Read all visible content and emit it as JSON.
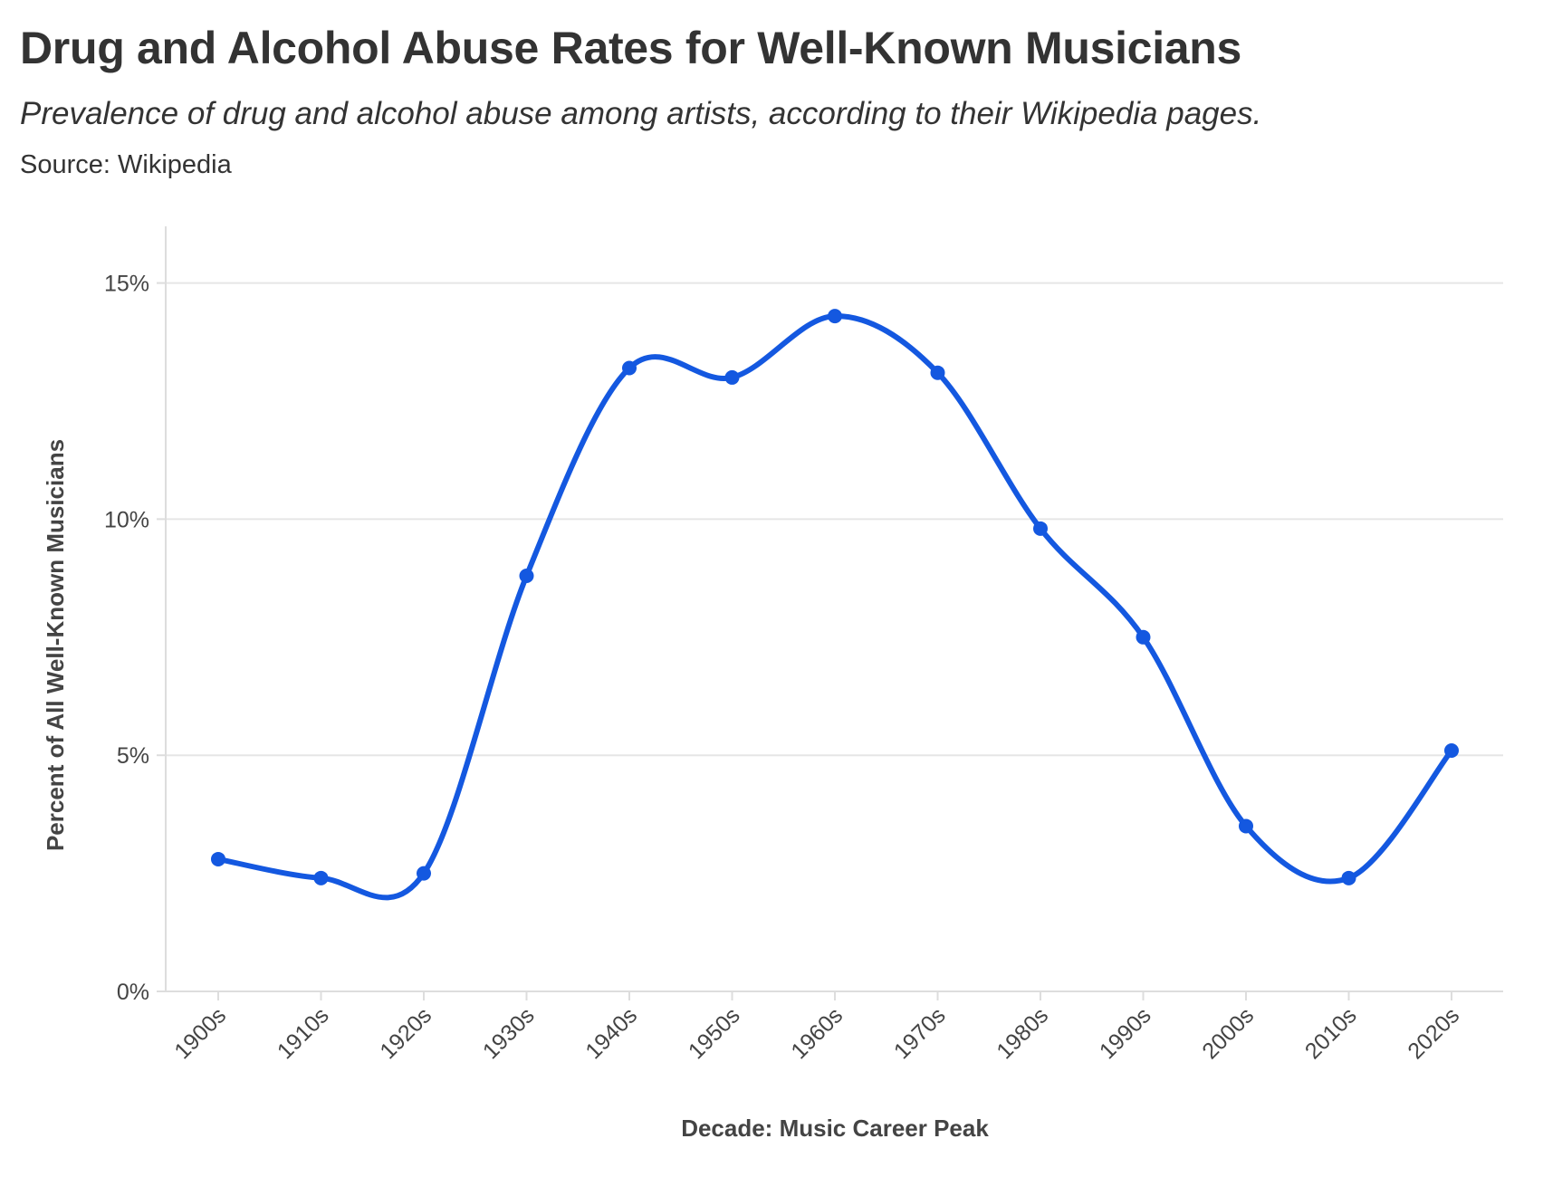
{
  "title": "Drug and Alcohol Abuse Rates for Well-Known Musicians",
  "subtitle": "Prevalence of drug and alcohol abuse among artists, according to their Wikipedia pages.",
  "source": "Source: Wikipedia",
  "colors": {
    "line": "#1458e0",
    "grid": "#e6e6e6",
    "axis": "#dddddd",
    "text": "#333333"
  },
  "chart_data": {
    "type": "line",
    "title": "Drug and Alcohol Abuse Rates for Well-Known Musicians",
    "xlabel": "Decade: Music Career Peak",
    "ylabel": "Percent of All Well-Known Musicians",
    "categories": [
      "1900s",
      "1910s",
      "1920s",
      "1930s",
      "1940s",
      "1950s",
      "1960s",
      "1970s",
      "1980s",
      "1990s",
      "2000s",
      "2010s",
      "2020s"
    ],
    "values": [
      2.8,
      2.4,
      2.5,
      8.8,
      13.2,
      13.0,
      14.3,
      13.1,
      9.8,
      7.5,
      3.5,
      2.4,
      5.1
    ],
    "ylim": [
      0,
      16.2
    ],
    "yticks": [
      0,
      5,
      10,
      15
    ],
    "ytick_labels": [
      "0%",
      "5%",
      "10%",
      "15%"
    ],
    "grid": true,
    "smooth": true,
    "markers": true,
    "legend": "none"
  }
}
